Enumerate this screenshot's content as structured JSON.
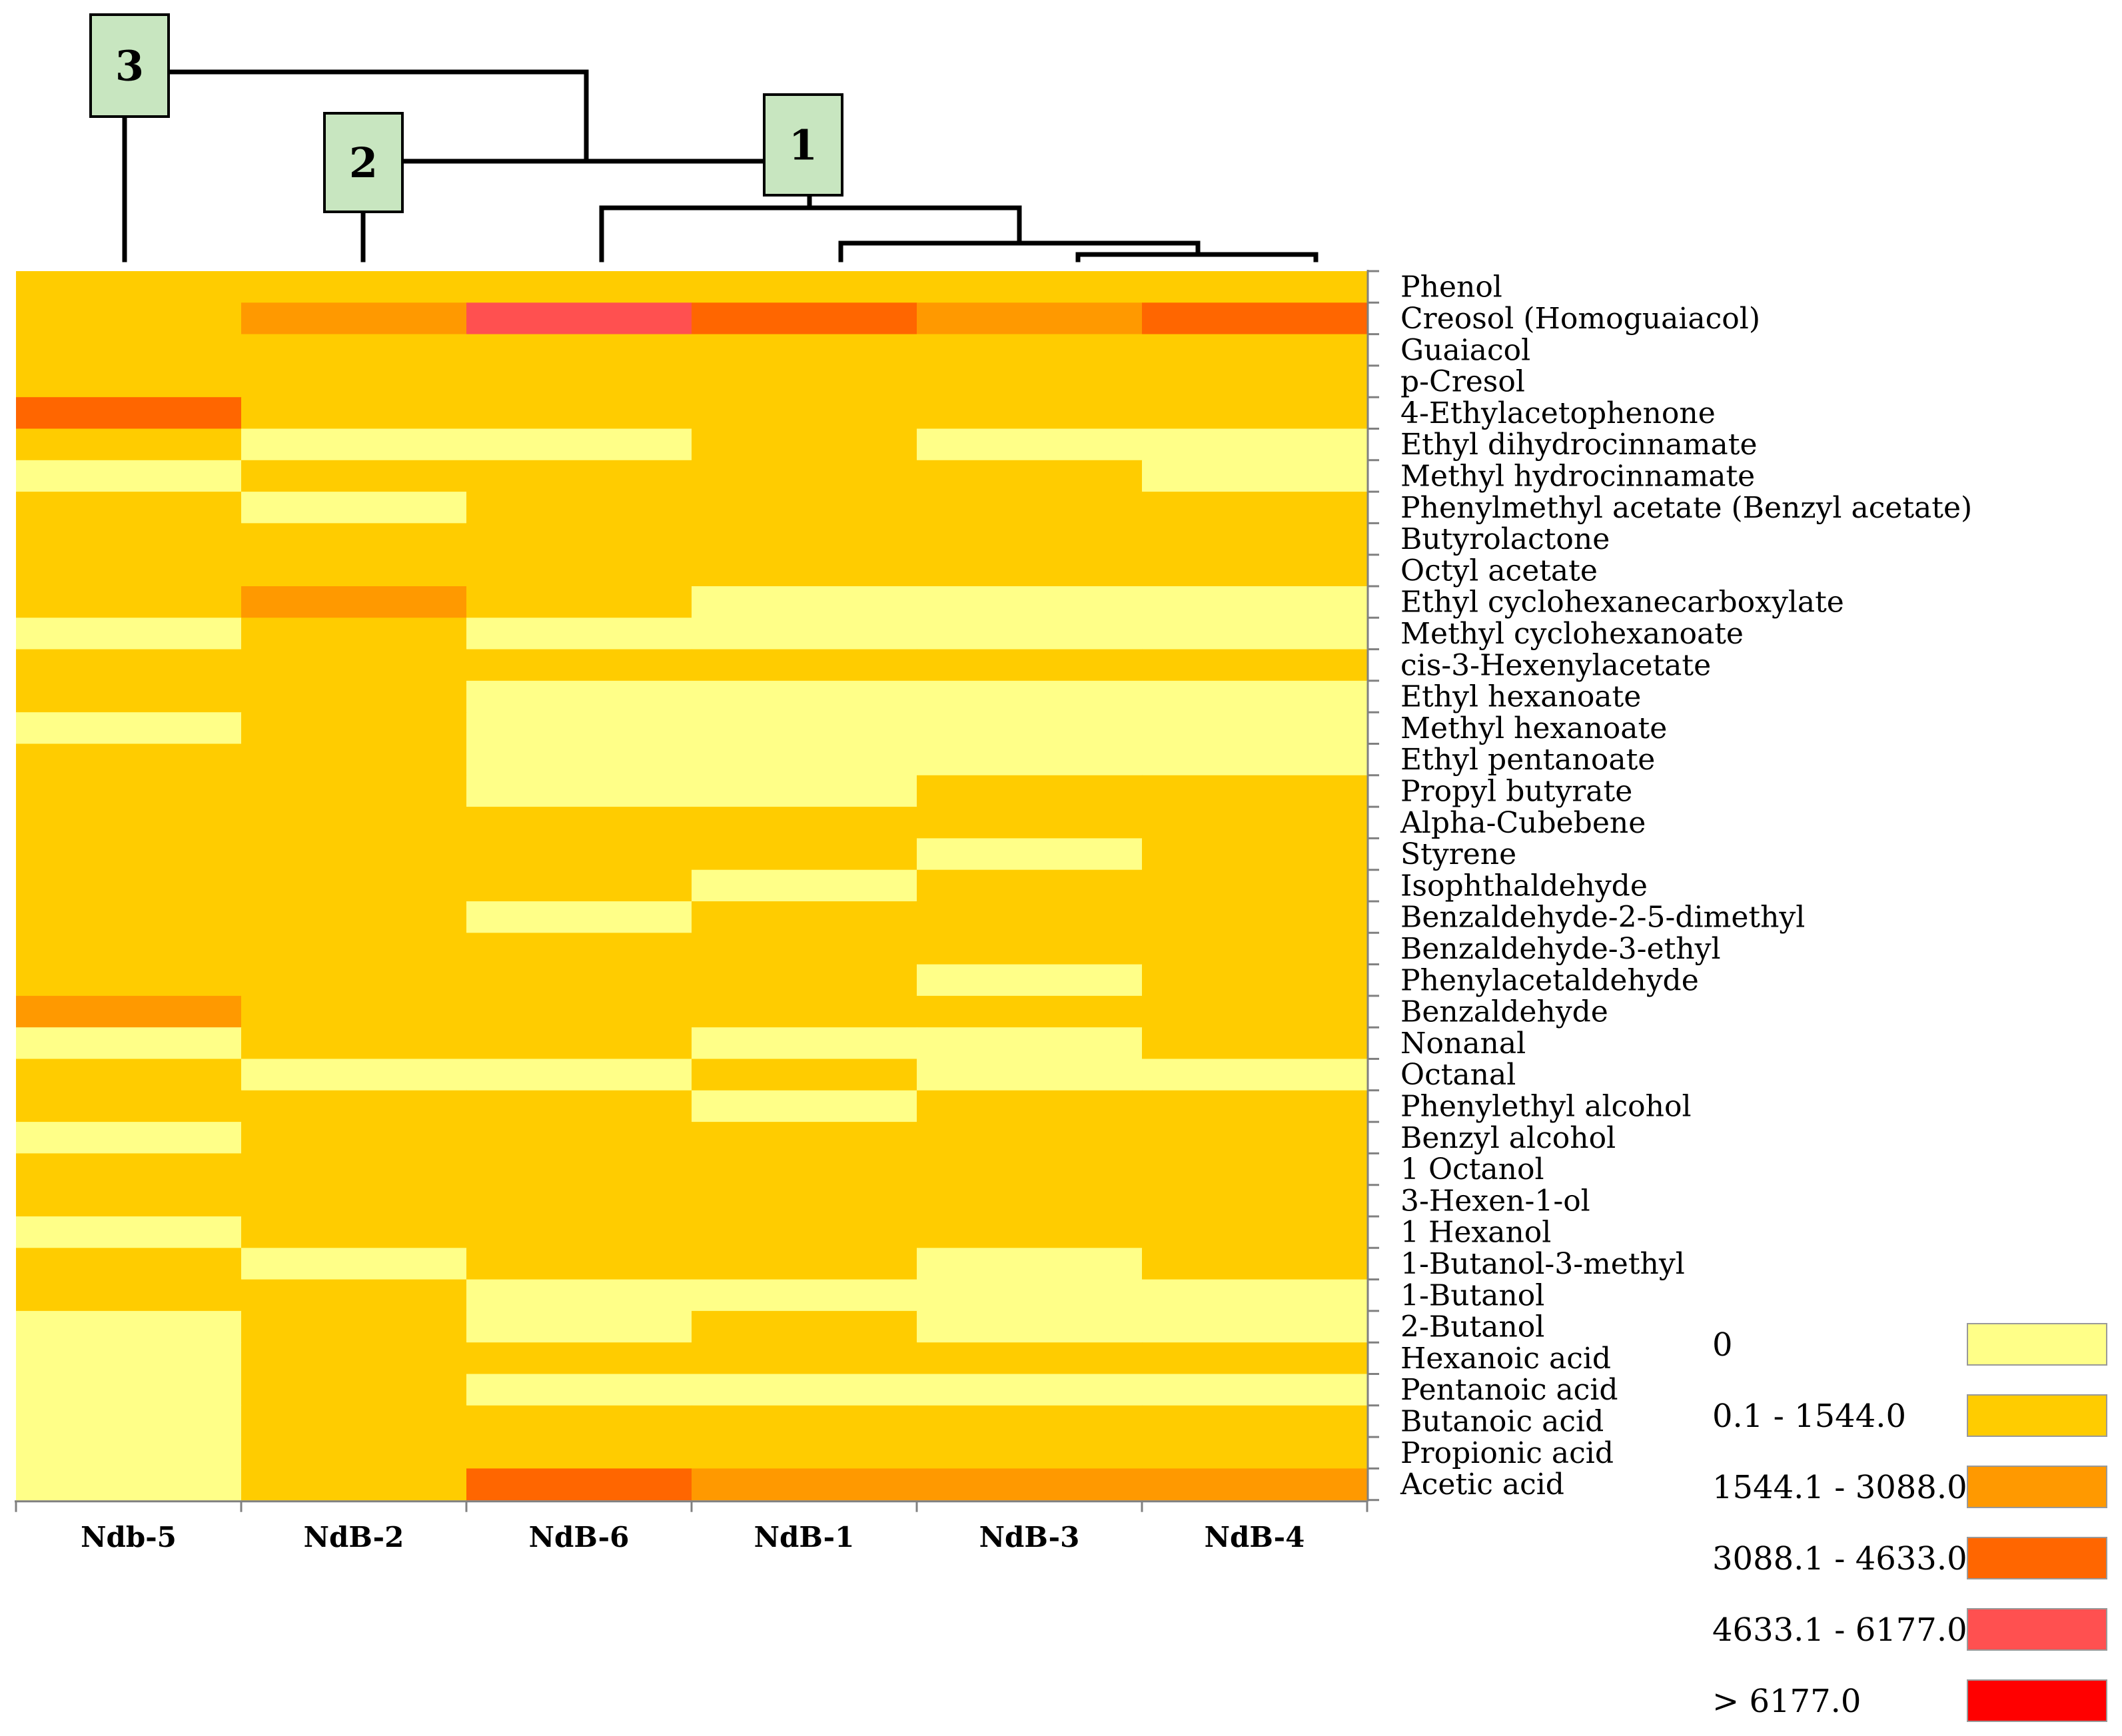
{
  "chart_data": {
    "type": "heatmap",
    "samples": [
      "Ndb-5",
      "NdB-2",
      "NdB-6",
      "NdB-1",
      "NdB-3",
      "NdB-4"
    ],
    "compounds": [
      "Phenol",
      "Creosol (Homoguaiacol)",
      "Guaiacol",
      "p-Cresol",
      "4-Ethylacetophenone",
      "Ethyl dihydrocinnamate",
      "Methyl hydrocinnamate",
      "Phenylmethyl acetate (Benzyl acetate)",
      "Butyrolactone",
      "Octyl acetate",
      "Ethyl cyclohexanecarboxylate",
      "Methyl cyclohexanoate",
      "cis-3-Hexenylacetate",
      "Ethyl hexanoate",
      "Methyl hexanoate",
      "Ethyl pentanoate",
      "Propyl butyrate",
      "Alpha-Cubebene",
      "Styrene",
      "Isophthaldehyde",
      "Benzaldehyde-2-5-dimethyl",
      "Benzaldehyde-3-ethyl",
      "Phenylacetaldehyde",
      "Benzaldehyde",
      "Nonanal",
      "Octanal",
      "Phenylethyl alcohol",
      "Benzyl alcohol",
      "1 Octanol",
      "3-Hexen-1-ol",
      "1 Hexanol",
      "1-Butanol-3-methyl",
      "1-Butanol",
      "2-Butanol",
      "Hexanoic acid",
      "Pentanoic acid",
      "Butanoic acid",
      "Propionic acid",
      "Acetic acid"
    ],
    "concentration_class_matrix": [
      [
        1,
        1,
        1,
        1,
        1,
        1
      ],
      [
        1,
        2,
        4,
        3,
        2,
        3
      ],
      [
        1,
        1,
        1,
        1,
        1,
        1
      ],
      [
        1,
        1,
        1,
        1,
        1,
        1
      ],
      [
        3,
        1,
        1,
        1,
        1,
        1
      ],
      [
        1,
        0,
        0,
        1,
        0,
        0
      ],
      [
        0,
        1,
        1,
        1,
        1,
        0
      ],
      [
        1,
        0,
        1,
        1,
        1,
        1
      ],
      [
        1,
        1,
        1,
        1,
        1,
        1
      ],
      [
        1,
        1,
        1,
        1,
        1,
        1
      ],
      [
        1,
        2,
        1,
        0,
        0,
        0
      ],
      [
        0,
        1,
        0,
        0,
        0,
        0
      ],
      [
        1,
        1,
        1,
        1,
        1,
        1
      ],
      [
        1,
        1,
        0,
        0,
        0,
        0
      ],
      [
        0,
        1,
        0,
        0,
        0,
        0
      ],
      [
        1,
        1,
        0,
        0,
        0,
        0
      ],
      [
        1,
        1,
        0,
        0,
        1,
        1
      ],
      [
        1,
        1,
        1,
        1,
        1,
        1
      ],
      [
        1,
        1,
        1,
        1,
        0,
        1
      ],
      [
        1,
        1,
        1,
        0,
        1,
        1
      ],
      [
        1,
        1,
        0,
        1,
        1,
        1
      ],
      [
        1,
        1,
        1,
        1,
        1,
        1
      ],
      [
        1,
        1,
        1,
        1,
        0,
        1
      ],
      [
        2,
        1,
        1,
        1,
        1,
        1
      ],
      [
        0,
        1,
        1,
        0,
        0,
        1
      ],
      [
        1,
        0,
        0,
        1,
        0,
        0
      ],
      [
        1,
        1,
        1,
        0,
        1,
        1
      ],
      [
        0,
        1,
        1,
        1,
        1,
        1
      ],
      [
        1,
        1,
        1,
        1,
        1,
        1
      ],
      [
        1,
        1,
        1,
        1,
        1,
        1
      ],
      [
        0,
        1,
        1,
        1,
        1,
        1
      ],
      [
        1,
        0,
        1,
        1,
        0,
        1
      ],
      [
        1,
        1,
        0,
        0,
        0,
        0
      ],
      [
        0,
        1,
        0,
        1,
        0,
        0
      ],
      [
        0,
        1,
        1,
        1,
        1,
        1
      ],
      [
        0,
        1,
        0,
        0,
        0,
        0
      ],
      [
        0,
        1,
        1,
        1,
        1,
        1
      ],
      [
        0,
        1,
        1,
        1,
        1,
        1
      ],
      [
        0,
        1,
        3,
        2,
        2,
        2
      ]
    ],
    "legend": [
      {
        "label": "0",
        "color": "#FFFF88"
      },
      {
        "label": "0.1 - 1544.0",
        "color": "#FFCC00"
      },
      {
        "label": "1544.1 - 3088.0",
        "color": "#FF9900"
      },
      {
        "label": "3088.1 - 4633.0",
        "color": "#FF6600"
      },
      {
        "label": "4633.1 - 6177.0",
        "color": "#FF5050"
      },
      {
        "label": "> 6177.0",
        "color": "#FF0000"
      }
    ],
    "legend_placement": "bottom-right",
    "dendrogram": {
      "cluster_labels": [
        "3",
        "2",
        "1"
      ],
      "cluster_box_color": "#C8E6C0",
      "line_color": "#000000"
    },
    "axis_color": "#808080"
  }
}
